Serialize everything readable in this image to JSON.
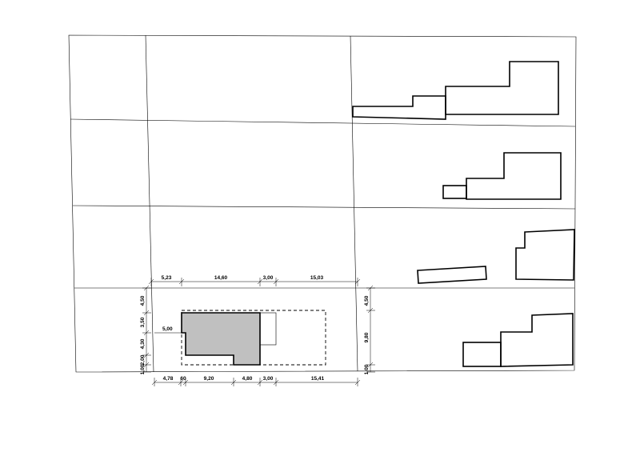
{
  "drawing": {
    "top_dimensions": [
      "5,23",
      "14,60",
      "3,00",
      "15,03"
    ],
    "bottom_dimensions": [
      "4,78",
      "60",
      "9,20",
      "4,80",
      "3,00",
      "15,41"
    ],
    "left_dimensions": [
      "4,50",
      "3,50",
      "4,30",
      "2,00",
      "1,00"
    ],
    "right_dimensions": [
      "4,50",
      "9,80",
      "1,00"
    ],
    "setback_label": "5,00"
  },
  "colors": {
    "line": "#000000",
    "building_fill": "#c0c0c0",
    "background": "#ffffff"
  }
}
